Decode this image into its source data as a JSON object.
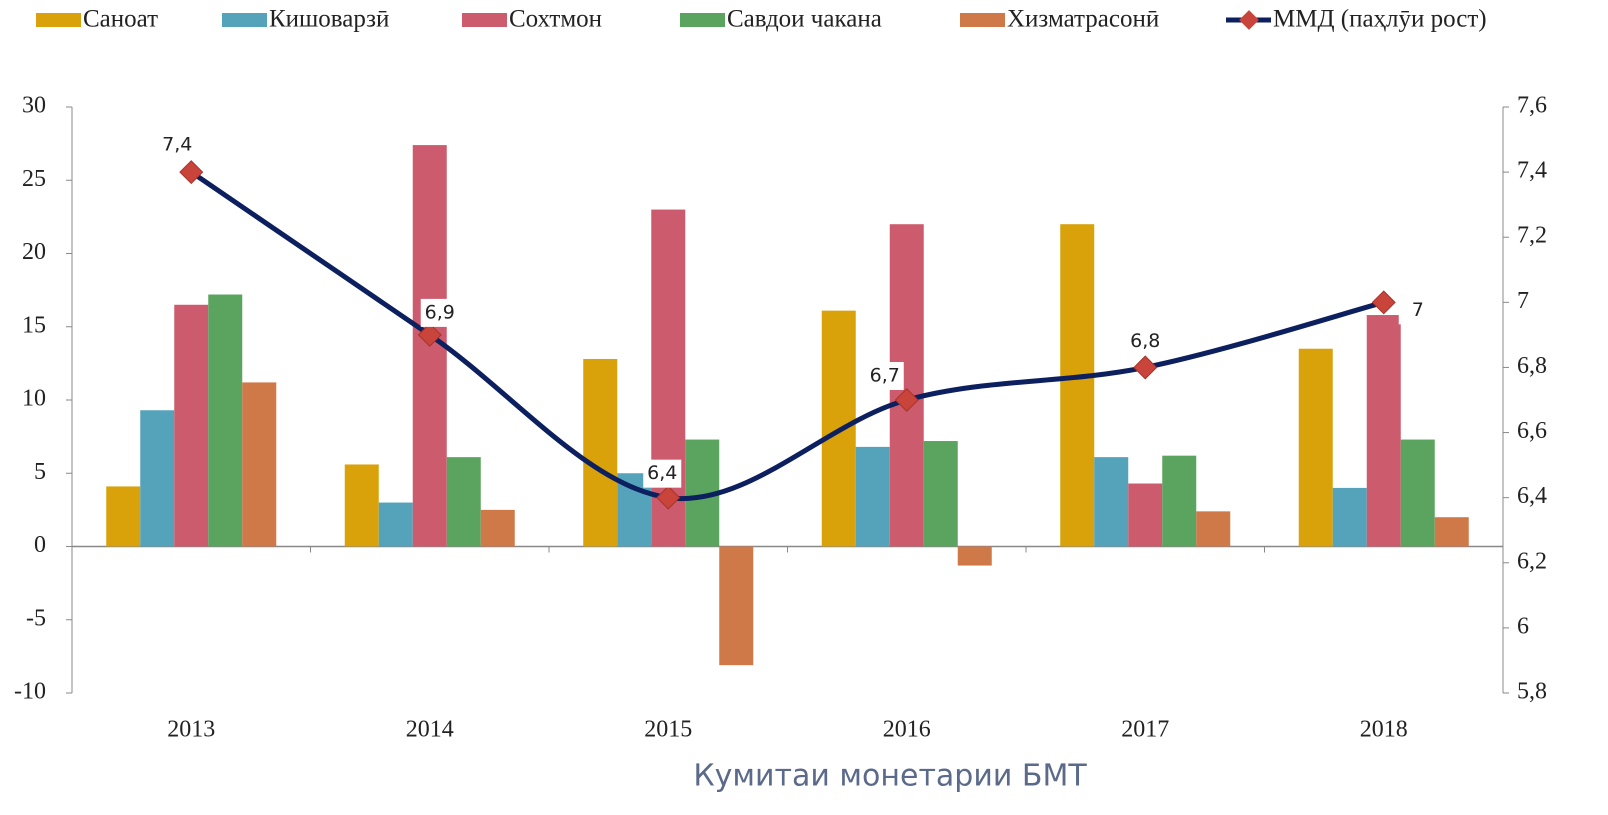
{
  "chart_data": {
    "type": "bar",
    "categories": [
      "2013",
      "2014",
      "2015",
      "2016",
      "2017",
      "2018"
    ],
    "series": [
      {
        "name": "Саноат",
        "color": "#d9a10a",
        "values": [
          4.1,
          5.6,
          12.8,
          16.1,
          22.0,
          13.5
        ]
      },
      {
        "name": "Кишоварзӣ",
        "color": "#55a3bb",
        "values": [
          9.3,
          3.0,
          5.0,
          6.8,
          6.1,
          4.0
        ]
      },
      {
        "name": "Сохтмон",
        "color": "#cc5c6d",
        "values": [
          16.5,
          27.4,
          23.0,
          22.0,
          4.3,
          15.8
        ]
      },
      {
        "name": "Савдои чакана",
        "color": "#5ba45f",
        "values": [
          17.2,
          6.1,
          7.3,
          7.2,
          6.2,
          7.3
        ]
      },
      {
        "name": "Хизматрасонӣ",
        "color": "#cf7848",
        "values": [
          11.2,
          2.5,
          -8.1,
          -1.3,
          2.4,
          2.0
        ]
      },
      {
        "name": "ММД (паҳлӯи рост)",
        "type": "line",
        "axis": "y2",
        "color": "#0c1f5e",
        "marker_color": "#c9443a",
        "values": [
          7.4,
          6.9,
          6.4,
          6.7,
          6.8,
          7.0
        ],
        "value_labels": [
          "7,4",
          "6,9",
          "6,4",
          "6,7",
          "6,8",
          "7"
        ]
      }
    ],
    "ylim": [
      -10,
      30
    ],
    "yticks": [
      -10,
      -5,
      0,
      5,
      10,
      15,
      20,
      25,
      30
    ],
    "y2lim": [
      5.8,
      7.6
    ],
    "y2ticks": [
      {
        "value": 5.8,
        "label": "5,8"
      },
      6,
      {
        "value": 6.2,
        "label": "6,2"
      },
      {
        "value": 6.4,
        "label": "6,4"
      },
      {
        "value": 6.6,
        "label": "6,6"
      },
      {
        "value": 6.8,
        "label": "6,8"
      },
      7,
      {
        "value": 7.2,
        "label": "7,2"
      },
      {
        "value": 7.4,
        "label": "7,4"
      },
      {
        "value": 7.6,
        "label": "7,6"
      }
    ],
    "grid": false,
    "legend": "top",
    "source": "Кумитаи монетарии БМТ"
  }
}
